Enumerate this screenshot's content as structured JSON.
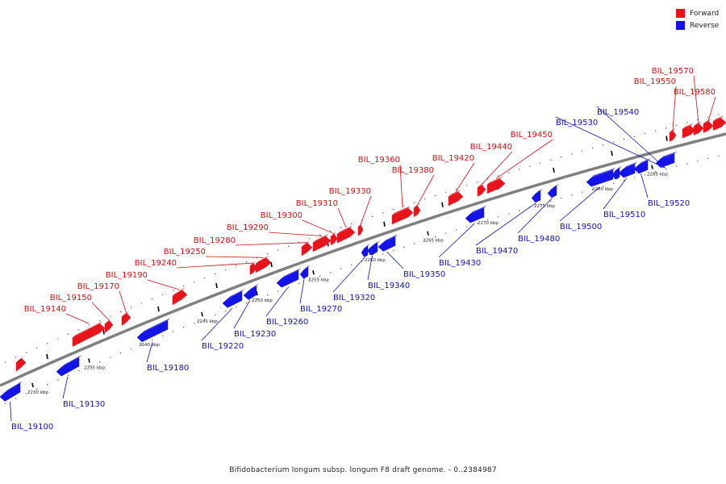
{
  "colors": {
    "forward": "#e8141c",
    "reverse": "#1414e6",
    "track": "#808080",
    "text_forward": "#cc1010",
    "text_reverse": "#1010aa"
  },
  "legend": [
    {
      "label": "Forward",
      "color": "#e8141c"
    },
    {
      "label": "Reverse",
      "color": "#1414e6"
    }
  ],
  "caption": "Bifidobacterium longum subsp. longum F8 draft genome. - 0..2384987",
  "ticks": [
    "2230 kbp",
    "2235 kbp",
    "2240 kbp",
    "2245 kbp",
    "2250 kbp",
    "2255 kbp",
    "2260 kbp",
    "2265 kbp",
    "2270 kbp",
    "2275 kbp",
    "2280 kbp",
    "2285 kbp"
  ],
  "genes_forward": [
    "BIL_19140",
    "BIL_19150",
    "BIL_19170",
    "BIL_19190",
    "BIL_19240",
    "BIL_19250",
    "BIL_19280",
    "BIL_19290",
    "BIL_19300",
    "BIL_19310",
    "BIL_19330",
    "BIL_19360",
    "BIL_19380",
    "BIL_19420",
    "BIL_19440",
    "BIL_19450",
    "BIL_19550",
    "BIL_19570",
    "BIL_19580"
  ],
  "genes_reverse": [
    "BIL_19100",
    "BIL_19130",
    "BIL_19180",
    "BIL_19220",
    "BIL_19230",
    "BIL_19260",
    "BIL_19270",
    "BIL_19320",
    "BIL_19340",
    "BIL_19350",
    "BIL_19430",
    "BIL_19470",
    "BIL_19480",
    "BIL_19500",
    "BIL_19510",
    "BIL_19520",
    "BIL_19530",
    "BIL_19540"
  ]
}
